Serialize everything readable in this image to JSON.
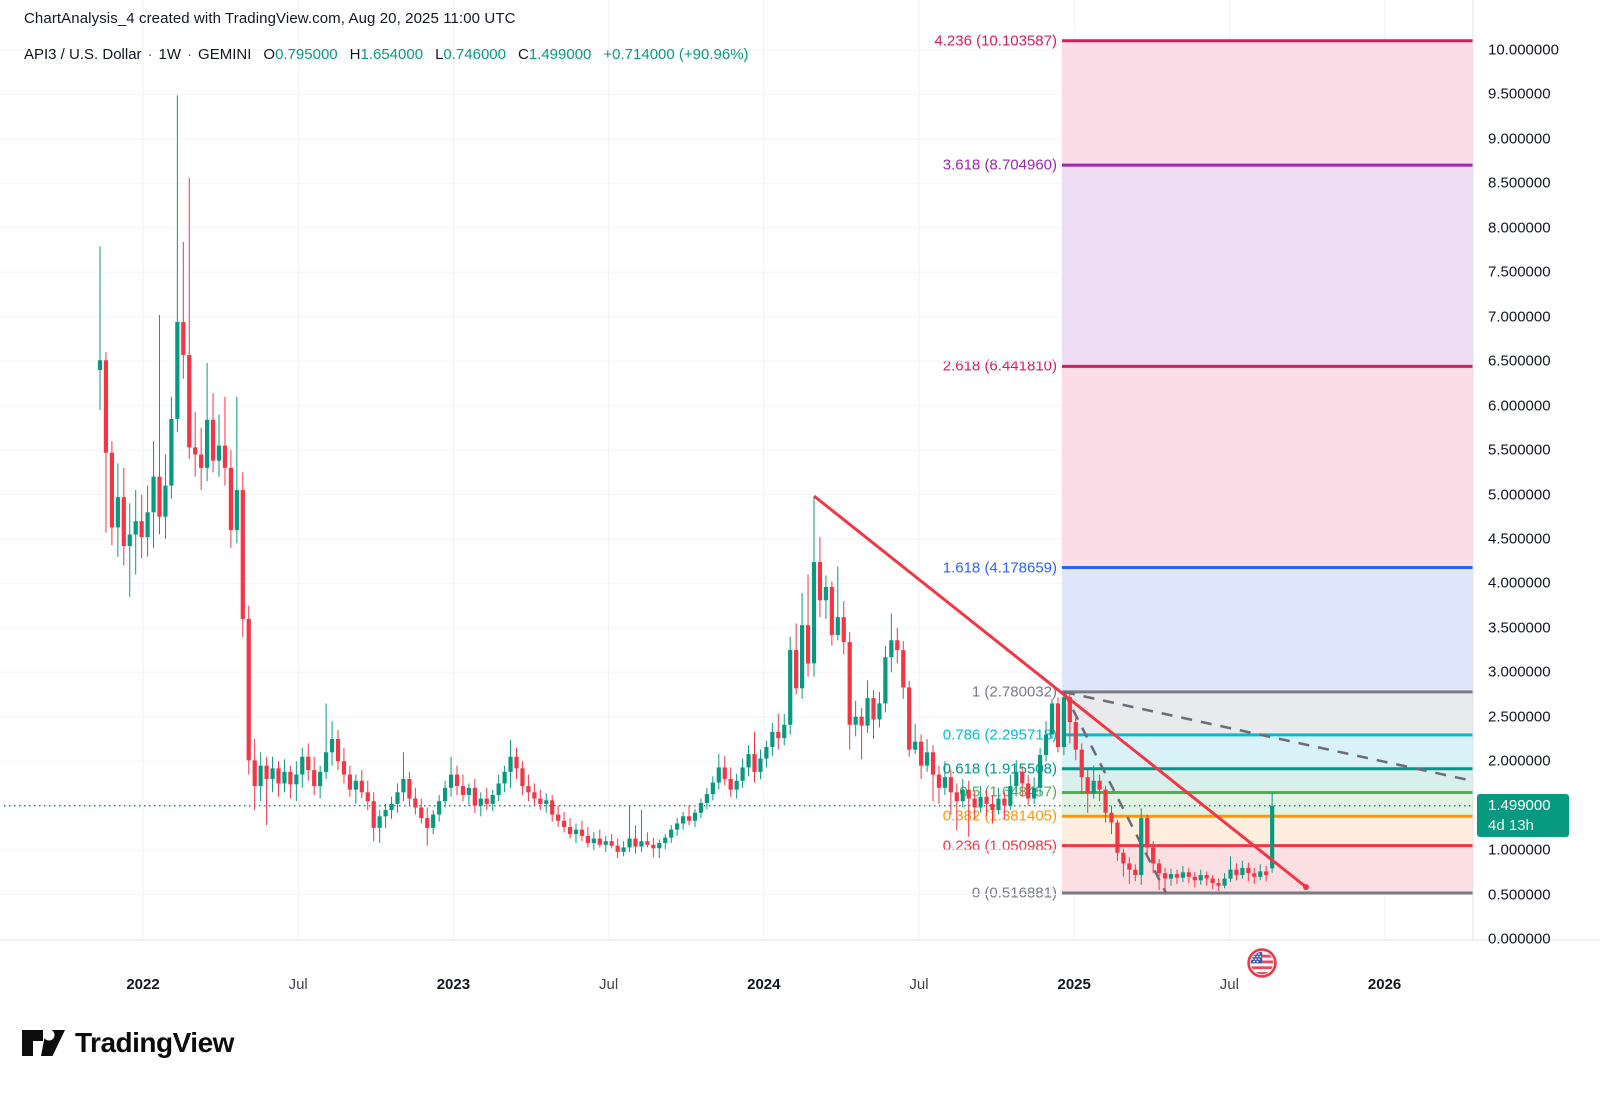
{
  "header": {
    "line1": "ChartAnalysis_4 created with TradingView.com, Aug 20, 2025 11:00 UTC",
    "symbol": "API3 / U.S. Dollar",
    "separator": "·",
    "interval": "1W",
    "exchange": "GEMINI",
    "ohlc": {
      "o_label": "O",
      "o_value": "0.795000",
      "h_label": "H",
      "h_value": "1.654000",
      "l_label": "L",
      "l_value": "0.746000",
      "c_label": "C",
      "c_value": "1.499000",
      "change": "+0.714000 (+90.96%)"
    }
  },
  "colors": {
    "up": "#089981",
    "down": "#f23645",
    "trendline": "#f23645",
    "dashed": "#6a6d78",
    "grid_v": "#f0f2f6",
    "grid_h": "#f3f5f9",
    "axis_border": "#e0e3eb",
    "text": "#131722",
    "badge_bg": "#089981"
  },
  "last_price_badge": {
    "price": "1.499000",
    "countdown": "4d 13h"
  },
  "price_axis": {
    "ticks": [
      "10.000000",
      "9.500000",
      "9.000000",
      "8.500000",
      "8.000000",
      "7.500000",
      "7.000000",
      "6.500000",
      "6.000000",
      "5.500000",
      "5.000000",
      "4.500000",
      "4.000000",
      "3.500000",
      "3.000000",
      "2.500000",
      "2.000000",
      "1.500000",
      "1.000000",
      "0.500000",
      "0.000000"
    ],
    "tick_values": [
      10,
      9.5,
      9,
      8.5,
      8,
      7.5,
      7,
      6.5,
      6,
      5.5,
      5,
      4.5,
      4,
      3.5,
      3,
      2.5,
      2,
      1.5,
      1,
      0.5,
      0
    ]
  },
  "time_axis": {
    "ticks": [
      {
        "label": "2022",
        "bold": true
      },
      {
        "label": "Jul",
        "bold": false
      },
      {
        "label": "2023",
        "bold": true
      },
      {
        "label": "Jul",
        "bold": false
      },
      {
        "label": "2024",
        "bold": true
      },
      {
        "label": "Jul",
        "bold": false
      },
      {
        "label": "2025",
        "bold": true
      },
      {
        "label": "Jul",
        "bold": false
      },
      {
        "label": "2026",
        "bold": true
      }
    ]
  },
  "fib": {
    "levels": [
      {
        "label": "4.236 (10.103587)",
        "price": 10.103587,
        "color": "#d81b60",
        "fill": "#fbdde8"
      },
      {
        "label": "3.618 (8.704960)",
        "price": 8.70496,
        "color": "#9c27b0",
        "fill": "#eedcf4"
      },
      {
        "label": "2.618 (6.441810)",
        "price": 6.44181,
        "color": "#d81b60",
        "fill": "#fbdde8"
      },
      {
        "label": "1.618 (4.178659)",
        "price": 4.178659,
        "color": "#2962ff",
        "fill": "#dfe6fb"
      },
      {
        "label": "1 (2.780032)",
        "price": 2.780032,
        "color": "#787b86",
        "fill": "#e9eaec"
      },
      {
        "label": "0.786 (2.295718)",
        "price": 2.295718,
        "color": "#00bcd4",
        "fill": "#d9f2f7"
      },
      {
        "label": "0.618 (1.915508)",
        "price": 1.915508,
        "color": "#009688",
        "fill": "#d9efec"
      },
      {
        "label": "0.5 (1.648457)",
        "price": 1.648457,
        "color": "#4caf50",
        "fill": "#e2f2e3"
      },
      {
        "label": "0.382 (1.381405)",
        "price": 1.381405,
        "color": "#ff9800",
        "fill": "#fdeedd"
      },
      {
        "label": "0.236 (1.050985)",
        "price": 1.050985,
        "color": "#f23645",
        "fill": "#fbdfe2"
      },
      {
        "label": "0 (0.516881)",
        "price": 0.516881,
        "color": "#787b86",
        "fill": null
      }
    ]
  },
  "logo": {
    "wordmark": "TradingView"
  },
  "icons": {
    "flag": "us-flag-session-icon",
    "logo_mark": "tradingview-logo-icon"
  },
  "chart_data": {
    "type": "candlestick",
    "title": "API3 / U.S. Dollar weekly candles on GEMINI",
    "interval": "1W",
    "ylim": [
      0,
      10.5
    ],
    "grid": true,
    "legend_position": "top-left",
    "last_price": 1.499,
    "current_price_line": 1.499,
    "trendline": {
      "from_price": 4.98,
      "to_price": 0.55,
      "color": "#f23645"
    },
    "columns": [
      "open",
      "high",
      "low",
      "close"
    ],
    "candles": [
      [
        6.4,
        7.79,
        5.95,
        6.51
      ],
      [
        6.51,
        6.6,
        4.57,
        5.47
      ],
      [
        5.47,
        5.6,
        4.43,
        4.63
      ],
      [
        4.63,
        5.35,
        4.3,
        4.97
      ],
      [
        4.97,
        5.3,
        4.2,
        4.42
      ],
      [
        4.42,
        4.9,
        3.85,
        4.55
      ],
      [
        4.55,
        5.05,
        4.1,
        4.7
      ],
      [
        4.7,
        5.0,
        4.28,
        4.52
      ],
      [
        4.52,
        5.1,
        4.3,
        4.8
      ],
      [
        4.8,
        5.6,
        4.4,
        5.2
      ],
      [
        5.2,
        7.02,
        4.55,
        4.75
      ],
      [
        4.75,
        5.45,
        4.5,
        5.1
      ],
      [
        5.1,
        6.1,
        4.95,
        5.85
      ],
      [
        5.85,
        9.49,
        5.7,
        6.94
      ],
      [
        6.94,
        7.84,
        6.3,
        6.57
      ],
      [
        6.57,
        8.56,
        5.4,
        5.53
      ],
      [
        5.53,
        5.93,
        5.2,
        5.45
      ],
      [
        5.45,
        5.75,
        5.05,
        5.3
      ],
      [
        5.3,
        6.48,
        5.15,
        5.84
      ],
      [
        5.84,
        6.14,
        5.25,
        5.38
      ],
      [
        5.38,
        5.9,
        5.2,
        5.55
      ],
      [
        5.55,
        6.1,
        5.1,
        5.3
      ],
      [
        5.3,
        5.5,
        4.4,
        4.6
      ],
      [
        4.6,
        6.1,
        4.45,
        5.05
      ],
      [
        5.05,
        5.25,
        3.4,
        3.6
      ],
      [
        3.6,
        3.75,
        1.85,
        2.01
      ],
      [
        2.01,
        2.25,
        1.45,
        1.72
      ],
      [
        1.72,
        2.1,
        1.55,
        1.95
      ],
      [
        1.95,
        2.05,
        1.28,
        1.8
      ],
      [
        1.8,
        2.05,
        1.65,
        1.92
      ],
      [
        1.92,
        2.0,
        1.6,
        1.75
      ],
      [
        1.75,
        2.02,
        1.65,
        1.88
      ],
      [
        1.88,
        1.95,
        1.58,
        1.74
      ],
      [
        1.74,
        2.0,
        1.55,
        1.85
      ],
      [
        1.85,
        2.15,
        1.7,
        2.05
      ],
      [
        2.05,
        2.2,
        1.78,
        1.9
      ],
      [
        1.9,
        2.05,
        1.62,
        1.72
      ],
      [
        1.72,
        1.95,
        1.58,
        1.88
      ],
      [
        1.88,
        2.65,
        1.8,
        2.1
      ],
      [
        2.1,
        2.45,
        1.95,
        2.25
      ],
      [
        2.25,
        2.35,
        1.9,
        2.0
      ],
      [
        2.0,
        2.15,
        1.75,
        1.85
      ],
      [
        1.85,
        1.95,
        1.6,
        1.68
      ],
      [
        1.68,
        1.85,
        1.52,
        1.78
      ],
      [
        1.78,
        1.9,
        1.58,
        1.65
      ],
      [
        1.65,
        1.78,
        1.45,
        1.55
      ],
      [
        1.55,
        1.65,
        1.1,
        1.25
      ],
      [
        1.25,
        1.45,
        1.08,
        1.38
      ],
      [
        1.38,
        1.52,
        1.25,
        1.45
      ],
      [
        1.45,
        1.6,
        1.35,
        1.52
      ],
      [
        1.52,
        1.75,
        1.42,
        1.65
      ],
      [
        1.65,
        2.1,
        1.55,
        1.8
      ],
      [
        1.8,
        1.88,
        1.5,
        1.58
      ],
      [
        1.58,
        1.7,
        1.4,
        1.48
      ],
      [
        1.48,
        1.58,
        1.3,
        1.36
      ],
      [
        1.36,
        1.48,
        1.05,
        1.25
      ],
      [
        1.25,
        1.45,
        1.18,
        1.4
      ],
      [
        1.4,
        1.62,
        1.32,
        1.55
      ],
      [
        1.55,
        1.78,
        1.48,
        1.7
      ],
      [
        1.7,
        2.05,
        1.6,
        1.85
      ],
      [
        1.85,
        1.95,
        1.62,
        1.72
      ],
      [
        1.72,
        1.85,
        1.55,
        1.62
      ],
      [
        1.62,
        1.75,
        1.5,
        1.7
      ],
      [
        1.7,
        1.8,
        1.42,
        1.5
      ],
      [
        1.5,
        1.65,
        1.38,
        1.58
      ],
      [
        1.58,
        1.7,
        1.45,
        1.52
      ],
      [
        1.52,
        1.68,
        1.44,
        1.62
      ],
      [
        1.62,
        1.85,
        1.55,
        1.75
      ],
      [
        1.75,
        1.95,
        1.65,
        1.88
      ],
      [
        1.88,
        2.24,
        1.7,
        2.05
      ],
      [
        2.05,
        2.15,
        1.8,
        1.92
      ],
      [
        1.92,
        2.0,
        1.62,
        1.72
      ],
      [
        1.72,
        1.85,
        1.55,
        1.65
      ],
      [
        1.65,
        1.75,
        1.5,
        1.58
      ],
      [
        1.58,
        1.68,
        1.45,
        1.52
      ],
      [
        1.52,
        1.64,
        1.42,
        1.56
      ],
      [
        1.56,
        1.62,
        1.32,
        1.4
      ],
      [
        1.4,
        1.5,
        1.26,
        1.33
      ],
      [
        1.33,
        1.43,
        1.2,
        1.26
      ],
      [
        1.26,
        1.36,
        1.13,
        1.18
      ],
      [
        1.18,
        1.3,
        1.08,
        1.23
      ],
      [
        1.23,
        1.33,
        1.1,
        1.16
      ],
      [
        1.16,
        1.26,
        1.03,
        1.08
      ],
      [
        1.08,
        1.2,
        1.0,
        1.13
      ],
      [
        1.13,
        1.23,
        1.03,
        1.06
      ],
      [
        1.06,
        1.16,
        0.98,
        1.1
      ],
      [
        1.1,
        1.18,
        1.02,
        1.05
      ],
      [
        1.05,
        1.13,
        0.91,
        0.98
      ],
      [
        0.98,
        1.1,
        0.93,
        1.03
      ],
      [
        1.03,
        1.5,
        0.98,
        1.13
      ],
      [
        1.13,
        1.28,
        0.96,
        1.04
      ],
      [
        1.04,
        1.45,
        0.98,
        1.1
      ],
      [
        1.1,
        1.2,
        1.03,
        1.06
      ],
      [
        1.06,
        1.14,
        0.92,
        1.02
      ],
      [
        1.02,
        1.12,
        0.91,
        1.08
      ],
      [
        1.08,
        1.18,
        1.01,
        1.14
      ],
      [
        1.14,
        1.28,
        1.08,
        1.23
      ],
      [
        1.23,
        1.36,
        1.16,
        1.3
      ],
      [
        1.3,
        1.43,
        1.23,
        1.38
      ],
      [
        1.38,
        1.5,
        1.28,
        1.33
      ],
      [
        1.33,
        1.46,
        1.26,
        1.42
      ],
      [
        1.42,
        1.58,
        1.36,
        1.53
      ],
      [
        1.53,
        1.7,
        1.46,
        1.63
      ],
      [
        1.63,
        1.83,
        1.56,
        1.76
      ],
      [
        1.76,
        2.08,
        1.68,
        1.93
      ],
      [
        1.93,
        2.06,
        1.73,
        1.8
      ],
      [
        1.8,
        1.93,
        1.6,
        1.68
      ],
      [
        1.68,
        1.86,
        1.58,
        1.78
      ],
      [
        1.78,
        2.03,
        1.7,
        1.93
      ],
      [
        1.93,
        2.18,
        1.83,
        2.08
      ],
      [
        2.08,
        2.33,
        1.76,
        1.88
      ],
      [
        1.88,
        2.13,
        1.8,
        2.03
      ],
      [
        2.03,
        2.23,
        1.93,
        2.16
      ],
      [
        2.16,
        2.43,
        2.06,
        2.33
      ],
      [
        2.33,
        2.53,
        2.13,
        2.26
      ],
      [
        2.26,
        2.53,
        2.18,
        2.41
      ],
      [
        2.41,
        3.4,
        2.3,
        3.25
      ],
      [
        3.25,
        3.55,
        2.75,
        2.82
      ],
      [
        2.82,
        3.89,
        2.7,
        3.53
      ],
      [
        3.53,
        4.1,
        2.95,
        3.1
      ],
      [
        3.1,
        4.98,
        2.95,
        4.24
      ],
      [
        4.24,
        4.52,
        3.62,
        3.81
      ],
      [
        3.81,
        4.09,
        3.6,
        3.96
      ],
      [
        3.96,
        4.02,
        3.3,
        3.42
      ],
      [
        3.42,
        4.19,
        3.36,
        3.62
      ],
      [
        3.62,
        3.8,
        3.2,
        3.34
      ],
      [
        3.34,
        3.45,
        2.13,
        2.41
      ],
      [
        2.41,
        2.68,
        2.28,
        2.5
      ],
      [
        2.5,
        2.6,
        2.02,
        2.4
      ],
      [
        2.4,
        2.91,
        2.32,
        2.71
      ],
      [
        2.71,
        2.8,
        2.25,
        2.47
      ],
      [
        2.47,
        2.78,
        2.38,
        2.65
      ],
      [
        2.65,
        3.3,
        2.55,
        3.17
      ],
      [
        3.17,
        3.66,
        3.0,
        3.36
      ],
      [
        3.36,
        3.5,
        3.1,
        3.25
      ],
      [
        3.25,
        3.35,
        2.7,
        2.83
      ],
      [
        2.83,
        2.9,
        2.05,
        2.13
      ],
      [
        2.13,
        2.42,
        2.08,
        2.22
      ],
      [
        2.22,
        2.3,
        1.8,
        1.95
      ],
      [
        1.95,
        2.25,
        1.88,
        2.1
      ],
      [
        2.1,
        2.18,
        1.55,
        1.85
      ],
      [
        1.85,
        1.95,
        1.52,
        1.7
      ],
      [
        1.7,
        2.0,
        1.62,
        1.82
      ],
      [
        1.82,
        1.9,
        1.4,
        1.65
      ],
      [
        1.65,
        1.75,
        1.22,
        1.55
      ],
      [
        1.55,
        1.8,
        1.48,
        1.68
      ],
      [
        1.68,
        1.78,
        1.15,
        1.58
      ],
      [
        1.58,
        1.66,
        1.35,
        1.48
      ],
      [
        1.48,
        1.72,
        1.42,
        1.6
      ],
      [
        1.6,
        1.68,
        1.38,
        1.52
      ],
      [
        1.52,
        1.62,
        1.3,
        1.45
      ],
      [
        1.45,
        1.7,
        1.4,
        1.58
      ],
      [
        1.58,
        1.65,
        1.35,
        1.5
      ],
      [
        1.5,
        1.85,
        1.45,
        1.72
      ],
      [
        1.72,
        2.01,
        1.65,
        1.88
      ],
      [
        1.88,
        1.95,
        1.6,
        1.75
      ],
      [
        1.75,
        1.85,
        1.5,
        1.58
      ],
      [
        1.58,
        1.82,
        1.52,
        1.7
      ],
      [
        1.7,
        2.15,
        1.62,
        2.07
      ],
      [
        2.07,
        2.45,
        2.0,
        2.3
      ],
      [
        2.3,
        2.7,
        2.25,
        2.65
      ],
      [
        2.65,
        2.72,
        2.1,
        2.16
      ],
      [
        2.16,
        2.78,
        2.07,
        2.72
      ],
      [
        2.72,
        2.76,
        2.2,
        2.44
      ],
      [
        2.44,
        2.5,
        2.01,
        2.13
      ],
      [
        2.13,
        2.2,
        1.64,
        1.82
      ],
      [
        1.82,
        1.9,
        1.42,
        1.64
      ],
      [
        1.64,
        1.95,
        1.58,
        1.78
      ],
      [
        1.78,
        1.85,
        1.55,
        1.68
      ],
      [
        1.68,
        1.72,
        1.31,
        1.42
      ],
      [
        1.42,
        1.5,
        1.18,
        1.31
      ],
      [
        1.31,
        1.34,
        0.88,
        0.97
      ],
      [
        0.97,
        1.02,
        0.7,
        0.85
      ],
      [
        0.85,
        0.92,
        0.62,
        0.78
      ],
      [
        0.78,
        0.84,
        0.65,
        0.72
      ],
      [
        0.72,
        1.47,
        0.61,
        1.36
      ],
      [
        1.36,
        1.4,
        0.95,
        1.03
      ],
      [
        1.03,
        1.1,
        0.74,
        0.85
      ],
      [
        0.85,
        0.9,
        0.55,
        0.74
      ],
      [
        0.74,
        0.8,
        0.52,
        0.68
      ],
      [
        0.68,
        0.79,
        0.6,
        0.73
      ],
      [
        0.73,
        0.78,
        0.62,
        0.69
      ],
      [
        0.69,
        0.82,
        0.64,
        0.75
      ],
      [
        0.75,
        0.8,
        0.63,
        0.7
      ],
      [
        0.7,
        0.75,
        0.58,
        0.66
      ],
      [
        0.66,
        0.78,
        0.61,
        0.72
      ],
      [
        0.72,
        0.76,
        0.6,
        0.68
      ],
      [
        0.68,
        0.72,
        0.56,
        0.63
      ],
      [
        0.63,
        0.68,
        0.54,
        0.6
      ],
      [
        0.6,
        0.74,
        0.57,
        0.68
      ],
      [
        0.68,
        0.93,
        0.64,
        0.78
      ],
      [
        0.78,
        0.85,
        0.66,
        0.72
      ],
      [
        0.72,
        0.88,
        0.68,
        0.8
      ],
      [
        0.8,
        0.86,
        0.65,
        0.74
      ],
      [
        0.74,
        0.8,
        0.62,
        0.7
      ],
      [
        0.7,
        0.84,
        0.66,
        0.76
      ],
      [
        0.76,
        0.82,
        0.65,
        0.72
      ],
      [
        0.795,
        1.654,
        0.746,
        1.499
      ]
    ]
  }
}
